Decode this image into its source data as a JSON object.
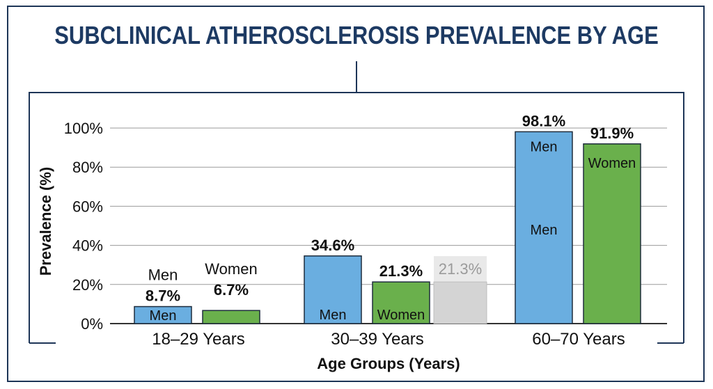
{
  "chart_data": {
    "type": "bar",
    "title": "SUBCLINICAL ATHEROSCLEROSIS PREVALENCE BY AGE",
    "xlabel": "Age Groups (Years)",
    "ylabel": "Prevalence (%)",
    "ylim": [
      0,
      100
    ],
    "yticks": [
      "0%",
      "20%",
      "40%",
      "60%",
      "80%",
      "100%"
    ],
    "grid": true,
    "categories": [
      "18–29 Years",
      "30–39 Years",
      "60–70 Years"
    ],
    "series": [
      {
        "name": "Men",
        "color": "#6aaee0",
        "values": [
          8.7,
          34.6,
          98.1
        ],
        "labels": [
          "8.7%",
          "34.6%",
          "98.1%"
        ]
      },
      {
        "name": "Women",
        "color": "#6ab04c",
        "values": [
          6.7,
          21.3,
          91.9
        ],
        "labels": [
          "6.7%",
          "21.3%",
          "91.9%"
        ]
      }
    ],
    "extra_bar": {
      "category": "30–39 Years",
      "value": 21.3,
      "label": "21.3%",
      "color": "#d4d4d4"
    },
    "annotations": {
      "men": "Men",
      "women": "Women"
    }
  }
}
